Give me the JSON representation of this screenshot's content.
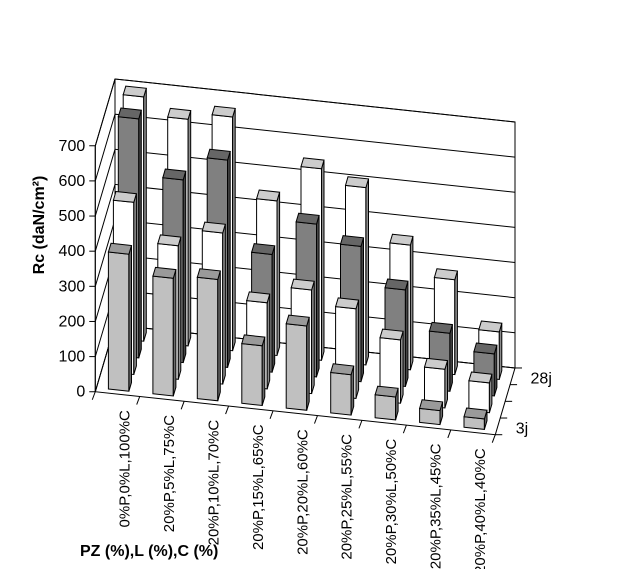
{
  "chart_data": {
    "type": "bar",
    "subtype": "3d-clustered-depth",
    "ylabel": "Rc (daN/cm²)",
    "xlabel": "PZ (%),L (%),C (%)",
    "ylim": [
      0,
      700
    ],
    "yticks": [
      0,
      100,
      200,
      300,
      400,
      500,
      600,
      700
    ],
    "grid": true,
    "categories": [
      "0%P,0%L,100%C",
      "20%P,5%L,75%C",
      "20%P,10%L,70%C",
      "20%P,15%L,65%C",
      "20%P,20%L,60%C",
      "20%P,25%L,55%C",
      "20%P,30%L,50%C",
      "20%P,35%L,45%C",
      "20%P,40%L,40%C"
    ],
    "depth_labels": [
      "3j",
      "28j"
    ],
    "series": [
      {
        "name": "3j",
        "color": "#c0c0c0",
        "values": [
          390,
          335,
          345,
          170,
          240,
          115,
          65,
          40,
          30
        ]
      },
      {
        "name": "",
        "color": "#ffffff",
        "values": [
          490,
          380,
          430,
          245,
          295,
          255,
          180,
          110,
          85
        ]
      },
      {
        "name": "",
        "color": "#808080",
        "values": [
          680,
          520,
          590,
          335,
          435,
          385,
          275,
          165,
          120
        ]
      },
      {
        "name": "28j",
        "color": "#ffffff",
        "values": [
          695,
          645,
          665,
          440,
          545,
          505,
          355,
          270,
          135
        ]
      }
    ]
  }
}
